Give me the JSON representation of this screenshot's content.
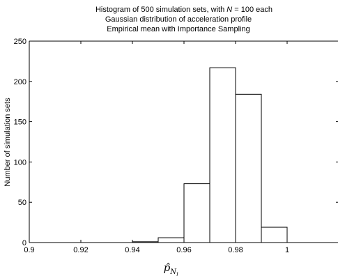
{
  "chart_data": {
    "type": "bar",
    "title_lines": [
      "Histogram of 500 simulation sets, with N = 100 each",
      "Gaussian distribution of acceleration profile",
      "Empirical mean with Importance Sampling"
    ],
    "xlabel": "p̂",
    "xlabel_sub": "N",
    "xlabel_subsub": "j",
    "ylabel": "Number of simulation sets",
    "xlim": [
      0.9,
      1.02
    ],
    "ylim": [
      0,
      250
    ],
    "xticks": [
      0.9,
      0.92,
      0.94,
      0.96,
      0.98,
      1
    ],
    "xtick_labels": [
      "0.9",
      "0.92",
      "0.94",
      "0.96",
      "0.98",
      "1"
    ],
    "yticks": [
      0,
      50,
      100,
      150,
      200,
      250
    ],
    "ytick_labels": [
      "0",
      "50",
      "100",
      "150",
      "200",
      "250"
    ],
    "bins": [
      {
        "x0": 0.94,
        "x1": 0.95,
        "value": 1
      },
      {
        "x0": 0.95,
        "x1": 0.96,
        "value": 6
      },
      {
        "x0": 0.96,
        "x1": 0.97,
        "value": 73
      },
      {
        "x0": 0.97,
        "x1": 0.98,
        "value": 217
      },
      {
        "x0": 0.98,
        "x1": 0.99,
        "value": 184
      },
      {
        "x0": 0.99,
        "x1": 1.0,
        "value": 19
      }
    ],
    "grid": false,
    "legend": "none"
  }
}
